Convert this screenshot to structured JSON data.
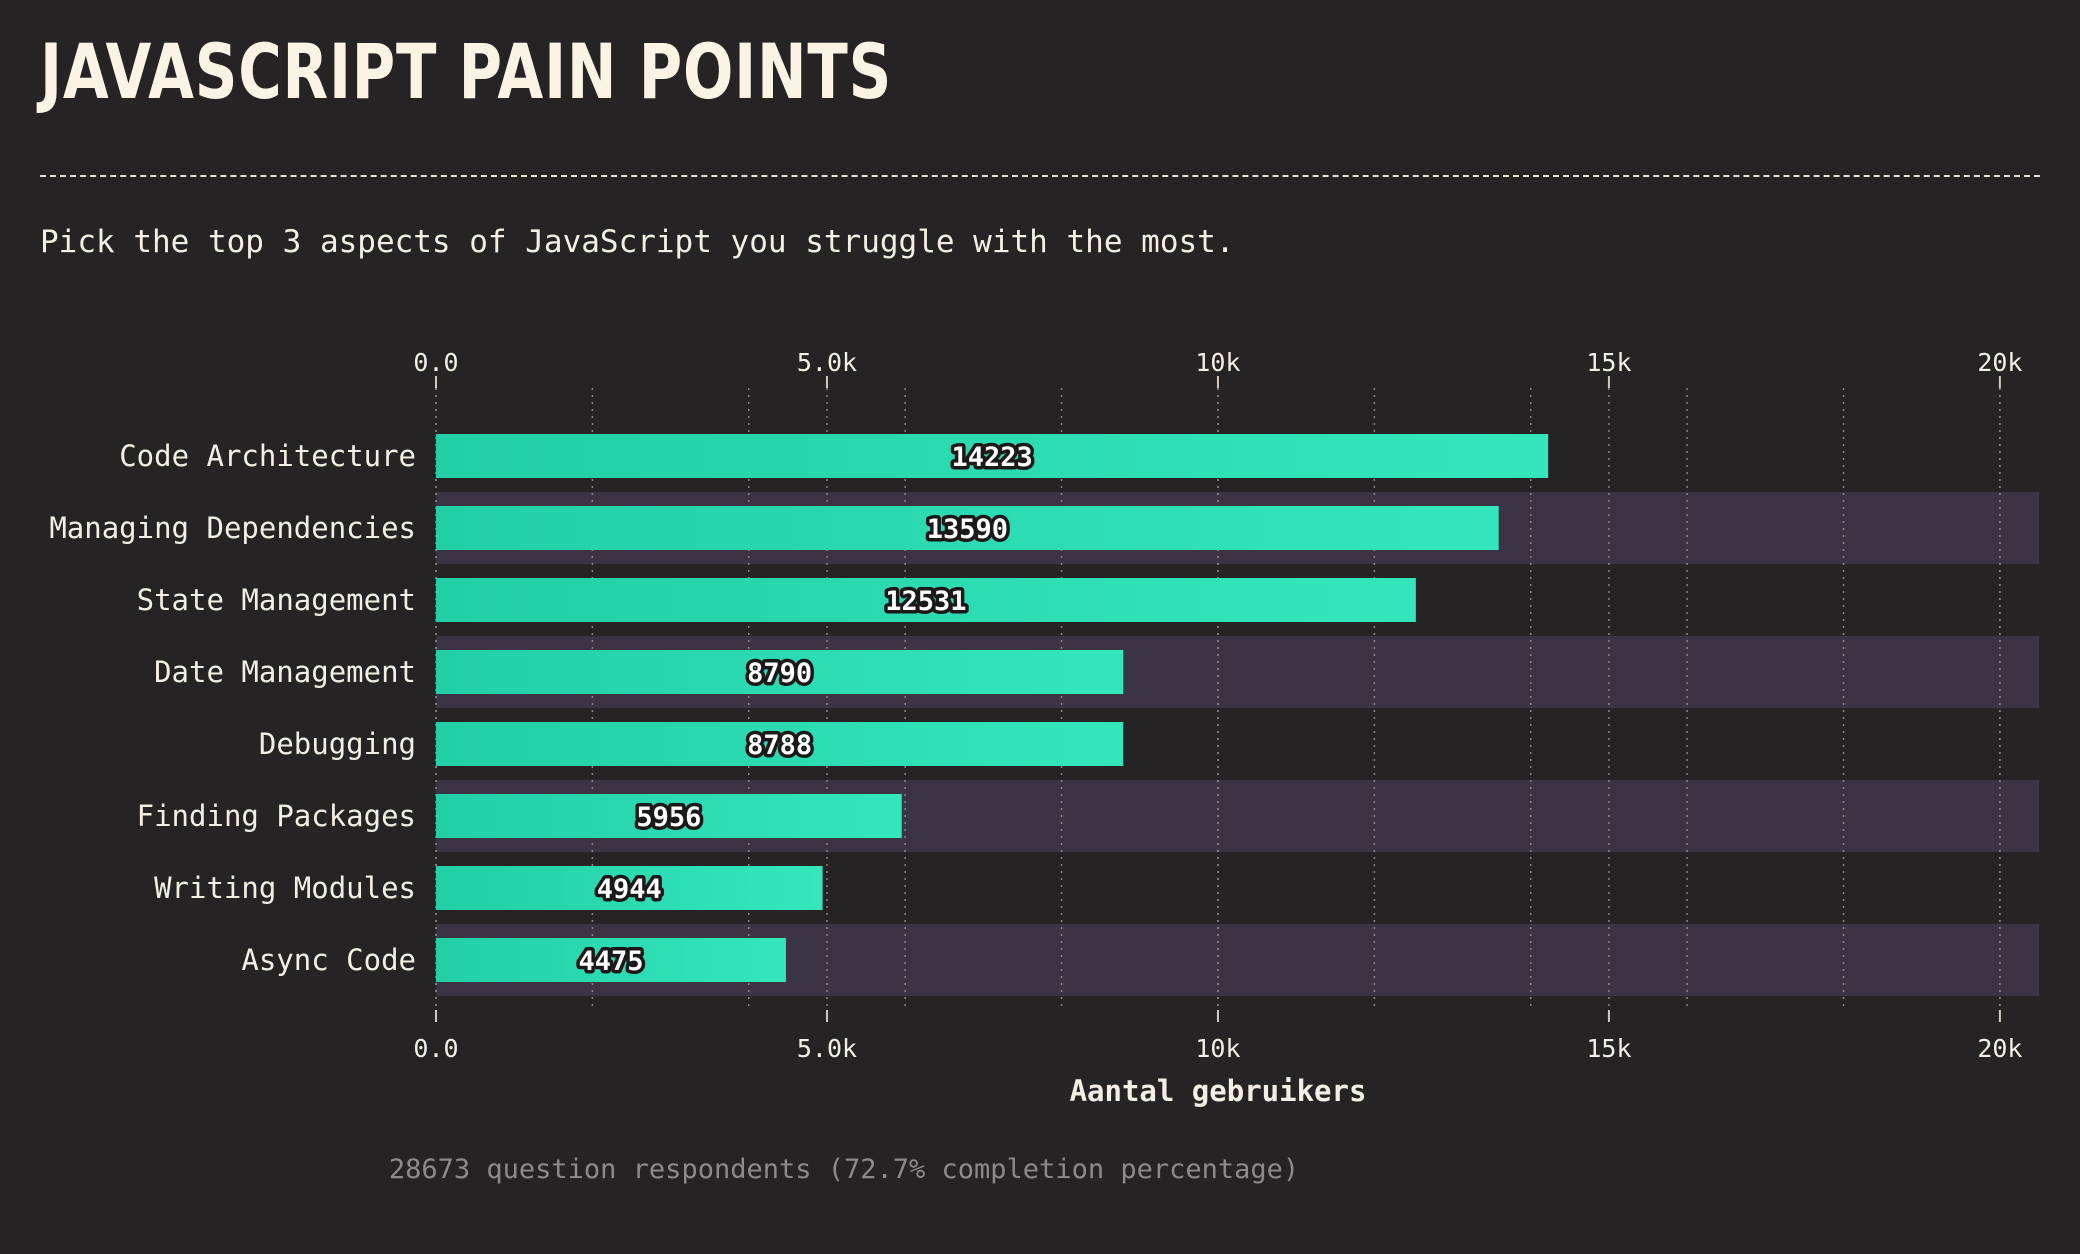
{
  "header": {
    "title": "JAVASCRIPT PAIN POINTS",
    "subtitle": "Pick the top 3 aspects of JavaScript you struggle with the most."
  },
  "footer": {
    "respondents": "28673 question respondents (72.7% completion percentage)"
  },
  "colors": {
    "background": "#262324",
    "bar_start": "#22cfa6",
    "bar_end": "#35e6bd",
    "row_band": "#3a3445",
    "grid": "#8a8585",
    "text": "#f4efe6"
  },
  "chart_data": {
    "type": "bar",
    "orientation": "horizontal",
    "categories": [
      "Code Architecture",
      "Managing Dependencies",
      "State Management",
      "Date Management",
      "Debugging",
      "Finding Packages",
      "Writing Modules",
      "Async Code"
    ],
    "values": [
      14223,
      13590,
      12531,
      8790,
      8788,
      5956,
      4944,
      4475
    ],
    "xlabel": "Aantal gebruikers",
    "xlim": [
      0,
      20500
    ],
    "ticks": [
      0,
      5000,
      10000,
      15000,
      20000
    ],
    "tick_labels": [
      "0.0",
      "5.0k",
      "10k",
      "15k",
      "20k"
    ],
    "minor_grid_step": 2000,
    "grid": true,
    "axis_position": "top-and-bottom"
  }
}
